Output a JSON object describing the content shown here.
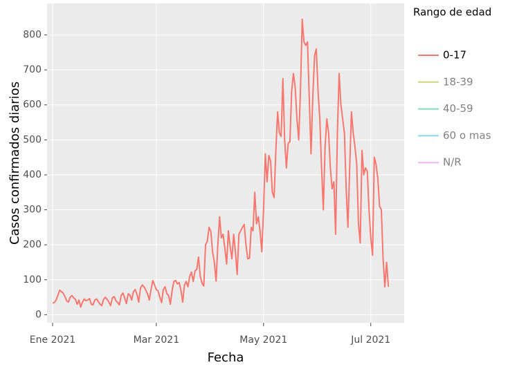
{
  "chart_data": {
    "type": "line",
    "x_label": "Fecha",
    "y_label": "Casos confirmados diarios",
    "legend_title": "Rango de edad",
    "x": [
      0,
      1,
      2,
      3,
      4,
      5,
      6,
      7,
      8,
      9,
      10,
      11,
      12,
      13,
      14,
      15,
      16,
      17,
      18,
      19,
      20,
      21,
      22,
      23,
      24,
      25,
      26,
      27,
      28,
      29,
      30,
      31,
      32,
      33,
      34,
      35,
      36,
      37,
      38,
      39,
      40,
      41,
      42,
      43,
      44,
      45,
      46,
      47,
      48,
      49,
      50,
      51,
      52,
      53,
      54,
      55,
      56,
      57,
      58,
      59,
      60,
      61,
      62,
      63,
      64,
      65,
      66,
      67,
      68,
      69,
      70,
      71,
      72,
      73,
      74,
      75,
      76,
      77,
      78,
      79,
      80,
      81,
      82,
      83,
      84,
      85,
      86,
      87,
      88,
      89,
      90,
      91,
      92,
      93,
      94,
      95,
      96,
      97,
      98,
      99,
      100,
      101,
      102,
      103,
      104,
      105,
      106,
      107,
      108,
      109,
      110,
      111,
      112,
      113,
      114,
      115,
      116,
      117,
      118,
      119,
      120,
      121,
      122,
      123,
      124,
      125,
      126,
      127,
      128,
      129,
      130,
      131,
      132,
      133,
      134,
      135,
      136,
      137,
      138,
      139,
      140,
      141,
      142,
      143,
      144,
      145,
      146,
      147,
      148,
      149,
      150,
      151,
      152,
      153,
      154,
      155,
      156,
      157,
      158,
      159,
      160,
      161,
      162,
      163,
      164,
      165,
      166,
      167,
      168,
      169,
      170,
      171,
      172,
      173,
      174,
      175,
      176,
      177,
      178,
      179,
      180,
      181,
      182,
      183,
      184,
      185,
      186,
      187,
      188,
      189,
      190,
      191
    ],
    "series": [
      {
        "name": "0-17",
        "color": "#F8766D",
        "visible": true,
        "values": [
          33,
          35,
          42,
          55,
          70,
          66,
          62,
          52,
          40,
          36,
          50,
          55,
          48,
          44,
          30,
          42,
          22,
          36,
          45,
          40,
          42,
          46,
          30,
          28,
          42,
          45,
          38,
          30,
          26,
          44,
          50,
          44,
          36,
          26,
          48,
          52,
          40,
          35,
          28,
          55,
          62,
          48,
          32,
          60,
          56,
          42,
          66,
          72,
          58,
          36,
          76,
          85,
          80,
          70,
          60,
          42,
          72,
          98,
          85,
          72,
          68,
          50,
          35,
          72,
          80,
          60,
          55,
          30,
          70,
          95,
          98,
          88,
          92,
          70,
          36,
          85,
          95,
          80,
          110,
          122,
          95,
          125,
          130,
          165,
          110,
          90,
          82,
          200,
          210,
          250,
          238,
          180,
          150,
          96,
          200,
          280,
          220,
          230,
          190,
          145,
          240,
          195,
          160,
          230,
          180,
          115,
          230,
          240,
          250,
          258,
          200,
          160,
          162,
          250,
          240,
          350,
          260,
          280,
          240,
          180,
          300,
          460,
          380,
          455,
          440,
          350,
          335,
          470,
          580,
          520,
          510,
          675,
          500,
          420,
          490,
          495,
          640,
          690,
          650,
          560,
          500,
          640,
          845,
          780,
          770,
          780,
          620,
          460,
          620,
          740,
          760,
          640,
          560,
          420,
          300,
          480,
          560,
          520,
          420,
          360,
          380,
          230,
          520,
          690,
          600,
          560,
          520,
          360,
          250,
          420,
          580,
          520,
          480,
          430,
          260,
          205,
          470,
          400,
          420,
          410,
          300,
          220,
          170,
          450,
          430,
          390,
          310,
          300,
          160,
          80,
          150,
          80
        ]
      },
      {
        "name": "18-39",
        "color": "#A3A500",
        "visible": false
      },
      {
        "name": "40-59",
        "color": "#00BF7D",
        "visible": false
      },
      {
        "name": "60 o mas",
        "color": "#00B0F6",
        "visible": false
      },
      {
        "name": "N/R",
        "color": "#E76BF3",
        "visible": false
      }
    ],
    "xlim": [
      0,
      200
    ],
    "xticks": [
      {
        "value": 0,
        "label": "Ene 2021"
      },
      {
        "value": 59,
        "label": "Mar 2021"
      },
      {
        "value": 120,
        "label": "May 2021"
      },
      {
        "value": 181,
        "label": "Jul 2021"
      }
    ],
    "ylim": [
      -23,
      890
    ],
    "yticks": [
      0,
      100,
      200,
      300,
      400,
      500,
      600,
      700,
      800
    ],
    "grid": true
  }
}
